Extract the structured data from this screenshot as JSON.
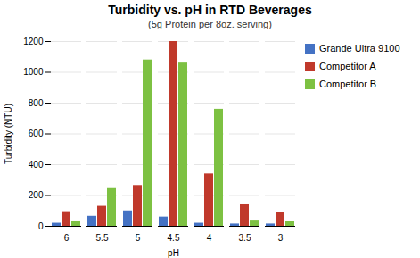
{
  "chart_data": {
    "type": "bar",
    "title": "Turbidity vs. pH in RTD Beverages",
    "subtitle": "(5g Protein per 8oz. serving)",
    "xlabel": "pH",
    "ylabel": "Turbidity (NTU)",
    "categories": [
      "6",
      "5.5",
      "5",
      "4.5",
      "4",
      "3.5",
      "3"
    ],
    "series": [
      {
        "name": "Grande Ultra 9100",
        "color": "#4472C4",
        "values": [
          20,
          65,
          100,
          60,
          20,
          15,
          15
        ]
      },
      {
        "name": "Competitor A",
        "color": "#C0392B",
        "values": [
          95,
          130,
          265,
          1200,
          340,
          145,
          90
        ]
      },
      {
        "name": "Competitor B",
        "color": "#7DC142",
        "values": [
          35,
          245,
          1080,
          1060,
          760,
          40,
          30
        ]
      }
    ],
    "ylim": [
      0,
      1200
    ],
    "yticks": [
      0,
      200,
      400,
      600,
      800,
      1000,
      1200
    ],
    "grid": true,
    "legend": "right"
  }
}
